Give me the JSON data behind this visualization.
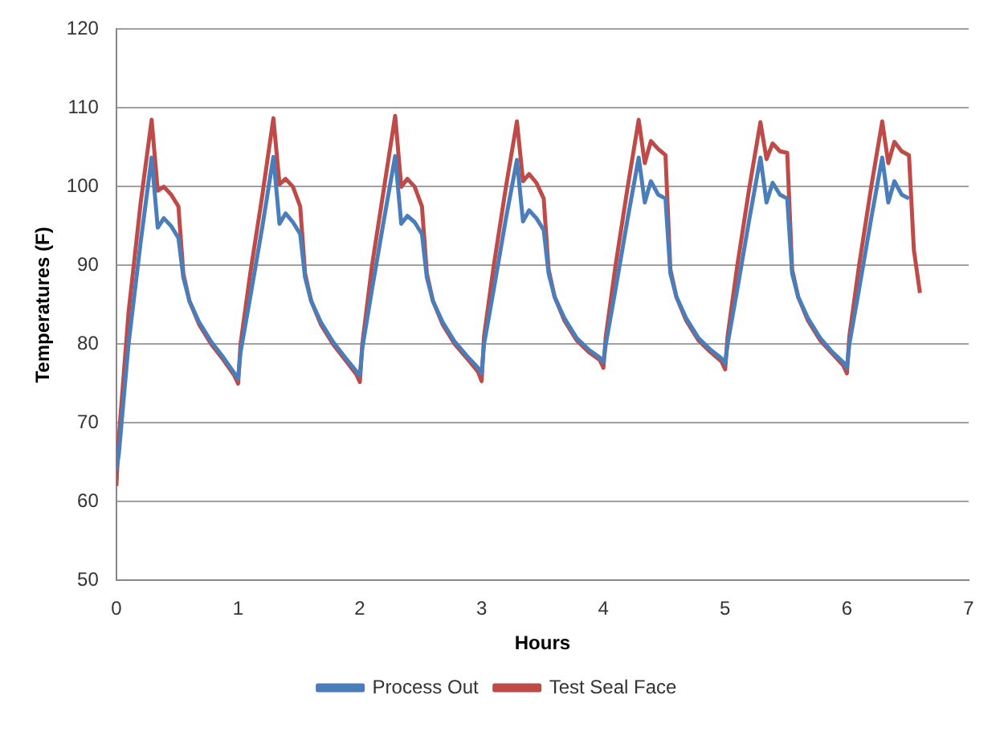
{
  "chart_data": {
    "type": "line",
    "xlabel": "Hours",
    "ylabel": "Temperatures (F)",
    "x": [
      0,
      0.02,
      0.1,
      0.2,
      0.29,
      0.34,
      0.39,
      0.45,
      0.51,
      0.55,
      0.6,
      0.68,
      0.78,
      0.88,
      0.97,
      1.0,
      1.02,
      1.1,
      1.2,
      1.29,
      1.34,
      1.39,
      1.45,
      1.51,
      1.55,
      1.6,
      1.68,
      1.78,
      1.88,
      1.97,
      2.0,
      2.02,
      2.1,
      2.2,
      2.29,
      2.34,
      2.39,
      2.45,
      2.51,
      2.55,
      2.6,
      2.68,
      2.78,
      2.88,
      2.97,
      3.0,
      3.02,
      3.1,
      3.2,
      3.29,
      3.34,
      3.39,
      3.45,
      3.51,
      3.55,
      3.6,
      3.68,
      3.78,
      3.88,
      3.97,
      4.0,
      4.02,
      4.1,
      4.2,
      4.29,
      4.34,
      4.39,
      4.45,
      4.51,
      4.55,
      4.6,
      4.68,
      4.78,
      4.88,
      4.97,
      5.0,
      5.02,
      5.1,
      5.2,
      5.29,
      5.34,
      5.39,
      5.45,
      5.51,
      5.55,
      5.6,
      5.68,
      5.78,
      5.88,
      5.97,
      6.0,
      6.02,
      6.1,
      6.2,
      6.29,
      6.34,
      6.39,
      6.45,
      6.51,
      6.55,
      6.6
    ],
    "series": [
      {
        "name": "Process Out",
        "color": "#4a7ebb",
        "values": [
          64,
          66,
          80,
          93,
          103.7,
          94.8,
          96,
          95,
          93.5,
          88.5,
          85.5,
          82.8,
          80.3,
          78.3,
          76.3,
          75.6,
          79,
          86,
          95,
          103.8,
          95.3,
          96.6,
          95.5,
          94,
          88.5,
          85.5,
          82.8,
          80.3,
          78.3,
          76.6,
          76,
          79.5,
          87,
          96,
          103.9,
          95.3,
          96.3,
          95.5,
          94,
          88.5,
          85.5,
          82.8,
          80.3,
          78.5,
          77,
          76.3,
          80,
          87,
          96,
          103.4,
          95.6,
          97,
          96,
          94.5,
          89,
          86,
          83.3,
          80.8,
          79.3,
          78.3,
          77.7,
          80,
          87,
          96,
          103.7,
          98,
          100.7,
          99,
          98.5,
          89,
          86,
          83.3,
          80.8,
          79.3,
          78.2,
          77.5,
          80,
          87,
          96,
          103.7,
          98,
          100.5,
          99,
          98.5,
          89,
          86,
          83.3,
          80.8,
          79,
          77.7,
          77,
          80,
          87,
          96,
          103.7,
          98,
          100.7,
          99,
          98.5,
          null,
          null
        ]
      },
      {
        "name": "Test Seal Face",
        "color": "#be4b48",
        "values": [
          62,
          68,
          84,
          98,
          108.5,
          99.5,
          100,
          99,
          97.5,
          89,
          85.5,
          82.5,
          80,
          78,
          76,
          75,
          80,
          89,
          99,
          108.7,
          100.3,
          101,
          100,
          97.5,
          89,
          85.5,
          82.5,
          80,
          78,
          76.2,
          75.2,
          80,
          90,
          100,
          109,
          100,
          101,
          100,
          97.5,
          89,
          85.5,
          82.5,
          80,
          78.2,
          76.5,
          75.3,
          81,
          90,
          100,
          108.3,
          100.7,
          101.6,
          100.5,
          98.5,
          89.5,
          86,
          83,
          80.5,
          79,
          78,
          77,
          81,
          90,
          100,
          108.5,
          103,
          105.8,
          104.8,
          104,
          89.5,
          86,
          83,
          80.5,
          79,
          77.8,
          76.8,
          81,
          90,
          100,
          108.2,
          103.5,
          105.5,
          104.5,
          104.3,
          89.5,
          86,
          83,
          80.5,
          78.8,
          77.3,
          76.3,
          81,
          90,
          100,
          108.3,
          103,
          105.7,
          104.5,
          104,
          92,
          86.5
        ]
      }
    ],
    "xlim": [
      0,
      7
    ],
    "xticks": [
      0,
      1,
      2,
      3,
      4,
      5,
      6,
      7
    ],
    "ylim": [
      50,
      120
    ],
    "yticks": [
      50,
      60,
      70,
      80,
      90,
      100,
      110,
      120
    ],
    "grid": "y",
    "legend": "bottom",
    "marker": "none",
    "line_style": "solid"
  }
}
